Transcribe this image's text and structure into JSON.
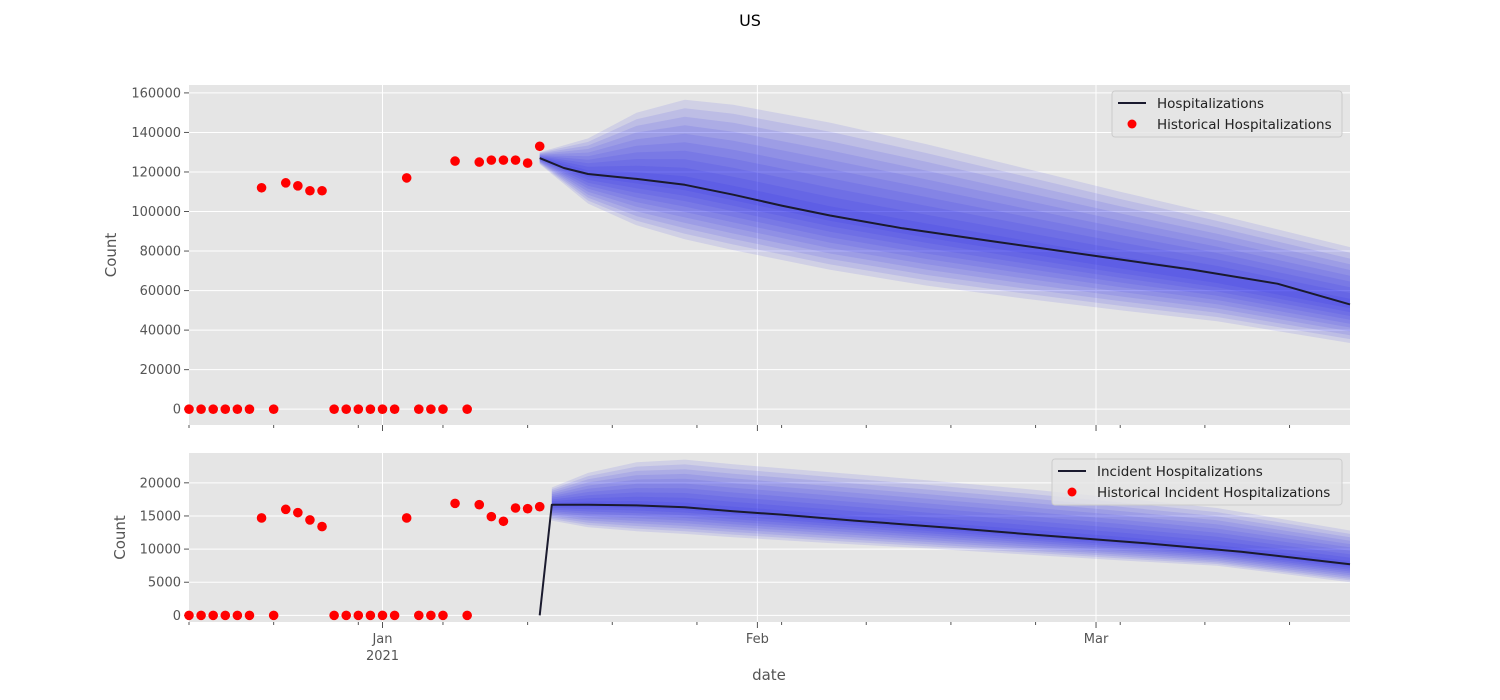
{
  "figure": {
    "title": "US",
    "xlabel": "date"
  },
  "colors": {
    "background": "#E5E5E5",
    "grid": "#FFFFFF",
    "line": "#1A1A2E",
    "dots": "#FF0000",
    "band": "#1E1EF0"
  },
  "chart_data": [
    {
      "type": "line",
      "ylabel": "Count",
      "ylim": [
        -8000,
        164000
      ],
      "yticks": [
        0,
        20000,
        40000,
        60000,
        80000,
        100000,
        120000,
        140000,
        160000
      ],
      "ytick_labels": [
        "0",
        "20000",
        "40000",
        "60000",
        "80000",
        "100000",
        "120000",
        "140000",
        "160000"
      ],
      "xlim": [
        "2020-12-16",
        "2021-03-22"
      ],
      "grid": true,
      "legend": {
        "position": "top-right",
        "entries": [
          {
            "label": "Hospitalizations",
            "kind": "line"
          },
          {
            "label": "Historical Hospitalizations",
            "kind": "dot"
          }
        ]
      },
      "series": [
        {
          "name": "Historical Hospitalizations",
          "kind": "scatter",
          "points": [
            [
              "2020-12-16",
              0
            ],
            [
              "2020-12-17",
              0
            ],
            [
              "2020-12-18",
              0
            ],
            [
              "2020-12-19",
              0
            ],
            [
              "2020-12-20",
              0
            ],
            [
              "2020-12-21",
              0
            ],
            [
              "2020-12-22",
              112000
            ],
            [
              "2020-12-23",
              0
            ],
            [
              "2020-12-24",
              114500
            ],
            [
              "2020-12-25",
              113000
            ],
            [
              "2020-12-26",
              110500
            ],
            [
              "2020-12-27",
              110500
            ],
            [
              "2020-12-28",
              0
            ],
            [
              "2020-12-29",
              0
            ],
            [
              "2020-12-30",
              0
            ],
            [
              "2020-12-31",
              0
            ],
            [
              "2021-01-01",
              0
            ],
            [
              "2021-01-02",
              0
            ],
            [
              "2021-01-03",
              117000
            ],
            [
              "2021-01-04",
              0
            ],
            [
              "2021-01-05",
              0
            ],
            [
              "2021-01-06",
              0
            ],
            [
              "2021-01-07",
              125500
            ],
            [
              "2021-01-08",
              0
            ],
            [
              "2021-01-09",
              125000
            ],
            [
              "2021-01-10",
              126000
            ],
            [
              "2021-01-11",
              126000
            ],
            [
              "2021-01-12",
              126000
            ],
            [
              "2021-01-13",
              124500
            ],
            [
              "2021-01-14",
              133000
            ]
          ]
        },
        {
          "name": "Hospitalizations",
          "kind": "line",
          "points": [
            [
              "2021-01-14",
              127000
            ],
            [
              "2021-01-16",
              122000
            ],
            [
              "2021-01-18",
              119000
            ],
            [
              "2021-01-22",
              116500
            ],
            [
              "2021-01-26",
              113500
            ],
            [
              "2021-01-30",
              108500
            ],
            [
              "2021-02-03",
              103000
            ],
            [
              "2021-02-07",
              98000
            ],
            [
              "2021-02-13",
              91500
            ],
            [
              "2021-02-21",
              84500
            ],
            [
              "2021-03-01",
              77500
            ],
            [
              "2021-03-09",
              70500
            ],
            [
              "2021-03-16",
              63500
            ],
            [
              "2021-03-22",
              53000
            ]
          ]
        }
      ],
      "uncertainty_band": {
        "x": [
          "2021-01-14",
          "2021-01-18",
          "2021-01-22",
          "2021-01-26",
          "2021-01-30",
          "2021-02-07",
          "2021-02-15",
          "2021-02-23",
          "2021-03-03",
          "2021-03-11",
          "2021-03-22"
        ],
        "median": [
          127000,
          119000,
          116500,
          113500,
          108500,
          98000,
          89500,
          81500,
          73500,
          66000,
          53000
        ],
        "outer_low": [
          124000,
          104000,
          93000,
          86000,
          80500,
          70500,
          62500,
          56000,
          50000,
          44500,
          33500
        ],
        "outer_high": [
          130000,
          137000,
          150000,
          156500,
          154000,
          145000,
          134000,
          122000,
          110000,
          98500,
          82000
        ]
      }
    },
    {
      "type": "line",
      "ylabel": "Count",
      "ylim": [
        -1000,
        24500
      ],
      "yticks": [
        0,
        5000,
        10000,
        15000,
        20000
      ],
      "ytick_labels": [
        "0",
        "5000",
        "10000",
        "15000",
        "20000"
      ],
      "xlim": [
        "2020-12-16",
        "2021-03-22"
      ],
      "grid": true,
      "xticks": [
        {
          "date": "2021-01-01",
          "label": "Jan",
          "sublabel": "2021"
        },
        {
          "date": "2021-02-01",
          "label": "Feb",
          "sublabel": ""
        },
        {
          "date": "2021-03-01",
          "label": "Mar",
          "sublabel": ""
        }
      ],
      "legend": {
        "position": "top-right",
        "entries": [
          {
            "label": "Incident Hospitalizations",
            "kind": "line"
          },
          {
            "label": "Historical Incident Hospitalizations",
            "kind": "dot"
          }
        ]
      },
      "series": [
        {
          "name": "Historical Incident Hospitalizations",
          "kind": "scatter",
          "points": [
            [
              "2020-12-16",
              0
            ],
            [
              "2020-12-17",
              0
            ],
            [
              "2020-12-18",
              0
            ],
            [
              "2020-12-19",
              0
            ],
            [
              "2020-12-20",
              0
            ],
            [
              "2020-12-21",
              0
            ],
            [
              "2020-12-22",
              14700
            ],
            [
              "2020-12-23",
              0
            ],
            [
              "2020-12-24",
              16000
            ],
            [
              "2020-12-25",
              15500
            ],
            [
              "2020-12-26",
              14400
            ],
            [
              "2020-12-27",
              13400
            ],
            [
              "2020-12-28",
              0
            ],
            [
              "2020-12-29",
              0
            ],
            [
              "2020-12-30",
              0
            ],
            [
              "2020-12-31",
              0
            ],
            [
              "2021-01-01",
              0
            ],
            [
              "2021-01-02",
              0
            ],
            [
              "2021-01-03",
              14700
            ],
            [
              "2021-01-04",
              0
            ],
            [
              "2021-01-05",
              0
            ],
            [
              "2021-01-06",
              0
            ],
            [
              "2021-01-07",
              16900
            ],
            [
              "2021-01-08",
              0
            ],
            [
              "2021-01-09",
              16700
            ],
            [
              "2021-01-10",
              14900
            ],
            [
              "2021-01-11",
              14200
            ],
            [
              "2021-01-12",
              16200
            ],
            [
              "2021-01-13",
              16100
            ],
            [
              "2021-01-14",
              16400
            ]
          ]
        },
        {
          "name": "Incident Hospitalizations",
          "kind": "line",
          "points": [
            [
              "2021-01-14",
              0
            ],
            [
              "2021-01-15",
              16700
            ],
            [
              "2021-01-18",
              16700
            ],
            [
              "2021-01-22",
              16600
            ],
            [
              "2021-01-26",
              16300
            ],
            [
              "2021-01-30",
              15700
            ],
            [
              "2021-02-03",
              15200
            ],
            [
              "2021-02-09",
              14300
            ],
            [
              "2021-02-17",
              13200
            ],
            [
              "2021-02-25",
              12000
            ],
            [
              "2021-03-05",
              10900
            ],
            [
              "2021-03-13",
              9600
            ],
            [
              "2021-03-22",
              7700
            ]
          ]
        }
      ],
      "uncertainty_band": {
        "x": [
          "2021-01-15",
          "2021-01-18",
          "2021-01-22",
          "2021-01-26",
          "2021-01-30",
          "2021-02-07",
          "2021-02-15",
          "2021-02-23",
          "2021-03-03",
          "2021-03-11",
          "2021-03-22"
        ],
        "median": [
          16700,
          16700,
          16600,
          16300,
          15700,
          14600,
          13400,
          12300,
          11200,
          10000,
          7700
        ],
        "outer_low": [
          14300,
          13300,
          12700,
          12300,
          11800,
          10900,
          10100,
          9200,
          8300,
          7500,
          5000
        ],
        "outer_high": [
          19300,
          21500,
          23100,
          23500,
          22800,
          21600,
          20400,
          19100,
          17700,
          16200,
          12800
        ]
      }
    }
  ]
}
